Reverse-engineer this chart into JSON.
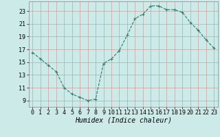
{
  "x": [
    0,
    1,
    2,
    3,
    4,
    5,
    6,
    7,
    8,
    9,
    10,
    11,
    12,
    13,
    14,
    15,
    16,
    17,
    18,
    19,
    20,
    21,
    22,
    23
  ],
  "y": [
    16.5,
    15.5,
    14.5,
    13.5,
    11.0,
    10.0,
    9.5,
    9.0,
    9.2,
    14.8,
    15.5,
    16.8,
    19.2,
    21.8,
    22.5,
    23.8,
    23.8,
    23.2,
    23.2,
    22.8,
    21.2,
    20.0,
    18.5,
    17.2
  ],
  "line_color": "#2d7a6e",
  "marker": "+",
  "marker_size": 3,
  "bg_color": "#cceae8",
  "grid_color_minor": "#d4b8b8",
  "grid_color_major": "#c0a8a8",
  "xlabel": "Humidex (Indice chaleur)",
  "xlabel_fontsize": 7,
  "tick_fontsize": 6,
  "xlim": [
    -0.5,
    23.5
  ],
  "ylim": [
    8.0,
    24.5
  ],
  "yticks": [
    9,
    11,
    13,
    15,
    17,
    19,
    21,
    23
  ],
  "xticks": [
    0,
    1,
    2,
    3,
    4,
    5,
    6,
    7,
    8,
    9,
    10,
    11,
    12,
    13,
    14,
    15,
    16,
    17,
    18,
    19,
    20,
    21,
    22,
    23
  ]
}
